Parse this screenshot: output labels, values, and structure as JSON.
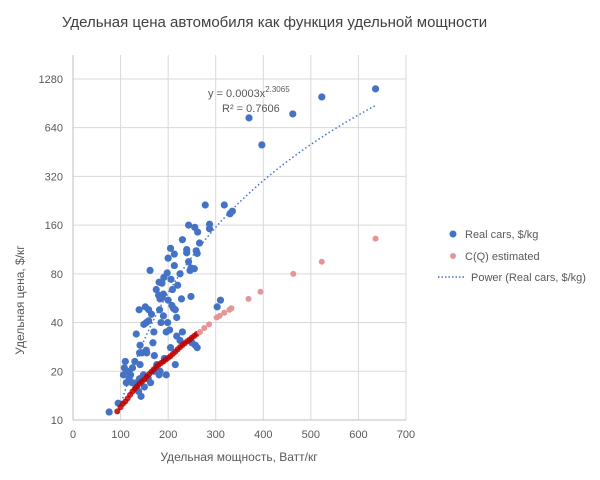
{
  "chart_data": {
    "type": "scatter",
    "title": "Удельная цена автомобиля как функция удельной мощности",
    "xlabel": "Удельная мощность, Ватт/кг",
    "ylabel": "Удельная цена, $/кг",
    "xlim": [
      0,
      700
    ],
    "ylim": [
      10,
      1800
    ],
    "yscale": "log2",
    "grid": true,
    "legend_position": "right",
    "x_ticks": [
      "0",
      "100",
      "200",
      "300",
      "400",
      "500",
      "600",
      "700"
    ],
    "y_ticks": [
      "10",
      "20",
      "40",
      "80",
      "160",
      "320",
      "640",
      "1280"
    ],
    "x_tick_values": [
      0,
      100,
      200,
      300,
      400,
      500,
      600,
      700
    ],
    "y_tick_values": [
      10,
      20,
      40,
      80,
      160,
      320,
      640,
      1280
    ],
    "trendline": {
      "name": "Power (Real cars, $/kg)",
      "type": "power",
      "a": 0.0003,
      "b": 2.3065,
      "equation_prefix": "y = 0.0003x",
      "equation_exponent": "2.3065",
      "r2_label": "R² = 0.7606",
      "x_range": [
        95,
        636
      ],
      "color": "#4472C4"
    },
    "series": [
      {
        "name": "Real cars, $/kg",
        "color": "#4472C4",
        "points": [
          [
            76,
            11.2
          ],
          [
            95,
            12.7
          ],
          [
            636,
            1112
          ],
          [
            523,
            991
          ],
          [
            462,
            778
          ],
          [
            370,
            736
          ],
          [
            397,
            501
          ],
          [
            278,
            213
          ],
          [
            318,
            213
          ],
          [
            335,
            195
          ],
          [
            330,
            188
          ],
          [
            243,
            160
          ],
          [
            256,
            155
          ],
          [
            287,
            162
          ],
          [
            287,
            152
          ],
          [
            266,
            124
          ],
          [
            239,
            113
          ],
          [
            239,
            108
          ],
          [
            259,
            111
          ],
          [
            261,
            107
          ],
          [
            213,
            106
          ],
          [
            200,
            100
          ],
          [
            213,
            90
          ],
          [
            243,
            95
          ],
          [
            248,
            87
          ],
          [
            255,
            86
          ],
          [
            246,
            84
          ],
          [
            162,
            84
          ],
          [
            198,
            81
          ],
          [
            191,
            76
          ],
          [
            206,
            74
          ],
          [
            225,
            80
          ],
          [
            181,
            71
          ],
          [
            187,
            70
          ],
          [
            209,
            64
          ],
          [
            180,
            59
          ],
          [
            187,
            57
          ],
          [
            183,
            56
          ],
          [
            190,
            60
          ],
          [
            228,
            56
          ],
          [
            248,
            58
          ],
          [
            208,
            51
          ],
          [
            211,
            49
          ],
          [
            215,
            48
          ],
          [
            182,
            48
          ],
          [
            310,
            55
          ],
          [
            303,
            50
          ],
          [
            139,
            48
          ],
          [
            152,
            50
          ],
          [
            159,
            48
          ],
          [
            154,
            40
          ],
          [
            159,
            41
          ],
          [
            149,
            39
          ],
          [
            190,
            44
          ],
          [
            185,
            40
          ],
          [
            199,
            40
          ],
          [
            196,
            35
          ],
          [
            203,
            36
          ],
          [
            218,
            43
          ],
          [
            218,
            33
          ],
          [
            230,
            35
          ],
          [
            133,
            34
          ],
          [
            141,
            29
          ],
          [
            154,
            27
          ],
          [
            145,
            26
          ],
          [
            140,
            26
          ],
          [
            155,
            26
          ],
          [
            168,
            30
          ],
          [
            171,
            25
          ],
          [
            110,
            23
          ],
          [
            130,
            23
          ],
          [
            141,
            22
          ],
          [
            106,
            19
          ],
          [
            115,
            20
          ],
          [
            121,
            19
          ],
          [
            112,
            17
          ],
          [
            124,
            17
          ],
          [
            133,
            17
          ],
          [
            140,
            18
          ],
          [
            148,
            19
          ],
          [
            163,
            17
          ],
          [
            171,
            20
          ],
          [
            181,
            19
          ],
          [
            196,
            19
          ],
          [
            183,
            20
          ],
          [
            215,
            22
          ],
          [
            250,
            30
          ],
          [
            257,
            29
          ],
          [
            261,
            28
          ],
          [
            138,
            15
          ],
          [
            143,
            14
          ],
          [
            133,
            16
          ],
          [
            118,
            18
          ],
          [
            108,
            21
          ],
          [
            125,
            21
          ],
          [
            150,
            16
          ],
          [
            158,
            18
          ],
          [
            176,
            22
          ],
          [
            192,
            24
          ],
          [
            205,
            28
          ],
          [
            225,
            31
          ],
          [
            170,
            35
          ],
          [
            165,
            45
          ],
          [
            200,
            55
          ],
          [
            220,
            68
          ],
          [
            175,
            64
          ],
          [
            205,
            115
          ],
          [
            230,
            130
          ],
          [
            262,
            145
          ]
        ]
      },
      {
        "name": "C(Q) estimated",
        "color": "#C00000",
        "points": [
          [
            93,
            11.3
          ],
          [
            100,
            12
          ],
          [
            105,
            12.6
          ],
          [
            110,
            13
          ],
          [
            115,
            13.6
          ],
          [
            120,
            14.3
          ],
          [
            125,
            15
          ],
          [
            130,
            15.6
          ],
          [
            135,
            16.2
          ],
          [
            140,
            16.8
          ],
          [
            145,
            17.3
          ],
          [
            150,
            17.8
          ],
          [
            155,
            18.5
          ],
          [
            160,
            19.2
          ],
          [
            165,
            19.9
          ],
          [
            170,
            20.6
          ],
          [
            175,
            21.3
          ],
          [
            180,
            21.9
          ],
          [
            185,
            22.5
          ],
          [
            190,
            23
          ],
          [
            195,
            23.6
          ],
          [
            200,
            24.2
          ],
          [
            205,
            24.8
          ],
          [
            210,
            25.6
          ],
          [
            215,
            26.4
          ],
          [
            220,
            27.3
          ],
          [
            225,
            28.2
          ],
          [
            230,
            29
          ],
          [
            235,
            29.8
          ],
          [
            240,
            30.6
          ],
          [
            245,
            31.4
          ],
          [
            250,
            32.3
          ],
          [
            255,
            33.1
          ],
          [
            260,
            34
          ],
          [
            267,
            35
          ],
          [
            276,
            37
          ],
          [
            286,
            39
          ],
          [
            302,
            43
          ],
          [
            308,
            44
          ],
          [
            318,
            46
          ],
          [
            329,
            48
          ],
          [
            333,
            49
          ],
          [
            369,
            56
          ],
          [
            394,
            62
          ],
          [
            463,
            80
          ],
          [
            523,
            95
          ],
          [
            636,
            132
          ]
        ]
      }
    ]
  }
}
